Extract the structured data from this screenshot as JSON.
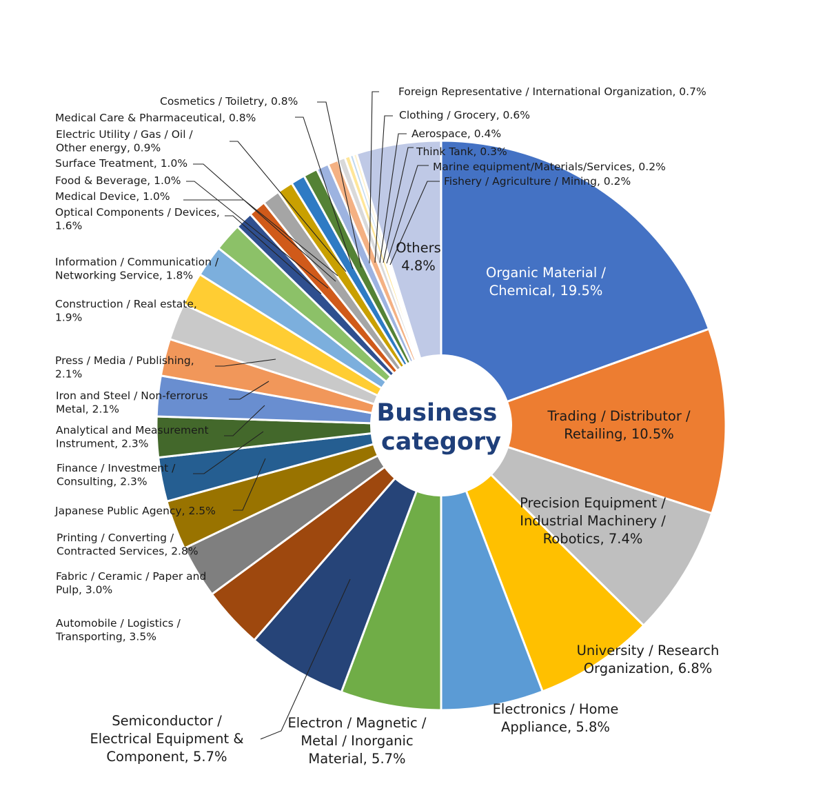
{
  "chart_data": {
    "type": "pie",
    "title": "",
    "center_label": [
      "Business",
      "category"
    ],
    "slices": [
      {
        "name": "Organic Material / Chemical",
        "value": 19.5,
        "color": "#4472C4"
      },
      {
        "name": "Trading / Distributor / Retailing",
        "value": 10.5,
        "color": "#ED7D31"
      },
      {
        "name": "Precision Equipment / Industrial Machinery / Robotics",
        "value": 7.4,
        "color": "#BFBFBF"
      },
      {
        "name": "University / Research Organization",
        "value": 6.8,
        "color": "#FFC000"
      },
      {
        "name": "Electronics / Home Appliance",
        "value": 5.8,
        "color": "#5B9BD5"
      },
      {
        "name": "Electron / Magnetic / Metal / Inorganic Material",
        "value": 5.7,
        "color": "#70AD47"
      },
      {
        "name": "Semiconductor / Electrical Equipment & Component",
        "value": 5.7,
        "color": "#264478"
      },
      {
        "name": "Automobile / Logistics / Transporting",
        "value": 3.5,
        "color": "#9E480E"
      },
      {
        "name": "Fabric / Ceramic / Paper and Pulp",
        "value": 3.0,
        "color": "#7F7F7F"
      },
      {
        "name": "Printing / Converting / Contracted Services",
        "value": 2.8,
        "color": "#997300"
      },
      {
        "name": "Japanese Public Agency",
        "value": 2.5,
        "color": "#255E91"
      },
      {
        "name": "Finance / Investment / Consulting",
        "value": 2.3,
        "color": "#43682B"
      },
      {
        "name": "Analytical and Measurement Instrument",
        "value": 2.3,
        "color": "#698ED0"
      },
      {
        "name": "Iron and Steel / Non-ferrorus Metal",
        "value": 2.1,
        "color": "#F1975A"
      },
      {
        "name": "Press / Media / Publishing",
        "value": 2.1,
        "color": "#C9C9C9"
      },
      {
        "name": "Construction / Real estate",
        "value": 1.9,
        "color": "#FFCD33"
      },
      {
        "name": "Information / Communication / Networking Service",
        "value": 1.8,
        "color": "#7CAFDD"
      },
      {
        "name": "Optical Components / Devices",
        "value": 1.6,
        "color": "#8CC168"
      },
      {
        "name": "Medical Device",
        "value": 1.0,
        "color": "#2F4F8F"
      },
      {
        "name": "Food & Beverage",
        "value": 1.0,
        "color": "#D05A1A"
      },
      {
        "name": "Surface Treatment",
        "value": 1.0,
        "color": "#A5A5A5"
      },
      {
        "name": "Electric Utility / Gas / Oil / Other energy",
        "value": 0.9,
        "color": "#C9A000"
      },
      {
        "name": "Medical Care & Pharmaceutical",
        "value": 0.8,
        "color": "#2E7BC4"
      },
      {
        "name": "Cosmetics / Toiletry",
        "value": 0.8,
        "color": "#548235"
      },
      {
        "name": "Foreign Representative / International Organization",
        "value": 0.7,
        "color": "#9DB3E0"
      },
      {
        "name": "Clothing / Grocery",
        "value": 0.6,
        "color": "#F4B183"
      },
      {
        "name": "Aerospace",
        "value": 0.4,
        "color": "#D9D9D9"
      },
      {
        "name": "Think Tank",
        "value": 0.3,
        "color": "#FFE699"
      },
      {
        "name": "Marine equipment/Materials/Services",
        "value": 0.2,
        "color": "#BDD7EE"
      },
      {
        "name": "Fishery / Agriculture / Mining",
        "value": 0.2,
        "color": "#FFF2CC"
      },
      {
        "name": "Others",
        "value": 4.8,
        "color": "#BFC9E6"
      }
    ],
    "labels": [
      {
        "lines": [
          "Organic Material /",
          "Chemical, 19.5%"
        ]
      },
      {
        "lines": [
          "Trading / Distributor /",
          "Retailing, 10.5%"
        ]
      },
      {
        "lines": [
          "Precision Equipment /",
          "Industrial Machinery /",
          "Robotics, 7.4%"
        ]
      },
      {
        "lines": [
          "University / Research",
          "Organization, 6.8%"
        ]
      },
      {
        "lines": [
          "Electronics / Home",
          "Appliance, 5.8%"
        ]
      },
      {
        "lines": [
          "Electron / Magnetic /",
          "Metal / Inorganic",
          "Material, 5.7%"
        ]
      },
      {
        "lines": [
          "Semiconductor /",
          "Electrical Equipment &",
          "Component, 5.7%"
        ]
      },
      {
        "lines": [
          "Automobile / Logistics /",
          "Transporting, 3.5%"
        ]
      },
      {
        "lines": [
          "Fabric / Ceramic / Paper and",
          "Pulp, 3.0%"
        ]
      },
      {
        "lines": [
          "Printing / Converting /",
          "Contracted Services, 2.8%"
        ]
      },
      {
        "lines": [
          "Japanese Public Agency, 2.5%"
        ]
      },
      {
        "lines": [
          "Finance / Investment /",
          "Consulting, 2.3%"
        ]
      },
      {
        "lines": [
          "Analytical and Measurement",
          "Instrument, 2.3%"
        ]
      },
      {
        "lines": [
          "Iron and Steel / Non-ferrorus",
          "Metal, 2.1%"
        ]
      },
      {
        "lines": [
          "Press / Media / Publishing,",
          "2.1%"
        ]
      },
      {
        "lines": [
          "Construction / Real estate,",
          "1.9%"
        ]
      },
      {
        "lines": [
          "Information / Communication /",
          "Networking Service, 1.8%"
        ]
      },
      {
        "lines": [
          "Optical Components / Devices,",
          "1.6%"
        ]
      },
      {
        "lines": [
          "Medical Device, 1.0%"
        ]
      },
      {
        "lines": [
          "Food & Beverage, 1.0%"
        ]
      },
      {
        "lines": [
          "Surface Treatment, 1.0%"
        ]
      },
      {
        "lines": [
          "Electric Utility / Gas / Oil /",
          "Other energy, 0.9%"
        ]
      },
      {
        "lines": [
          "Medical Care & Pharmaceutical, 0.8%"
        ]
      },
      {
        "lines": [
          "Cosmetics / Toiletry, 0.8%"
        ]
      },
      {
        "lines": [
          "Foreign Representative / International Organization, 0.7%"
        ]
      },
      {
        "lines": [
          "Clothing / Grocery, 0.6%"
        ]
      },
      {
        "lines": [
          "Aerospace, 0.4%"
        ]
      },
      {
        "lines": [
          "Think Tank, 0.3%"
        ]
      },
      {
        "lines": [
          "Marine equipment/Materials/Services, 0.2%"
        ]
      },
      {
        "lines": [
          "Fishery / Agriculture / Mining, 0.2%"
        ]
      },
      {
        "lines": [
          "Others",
          "4.8%"
        ]
      }
    ]
  }
}
